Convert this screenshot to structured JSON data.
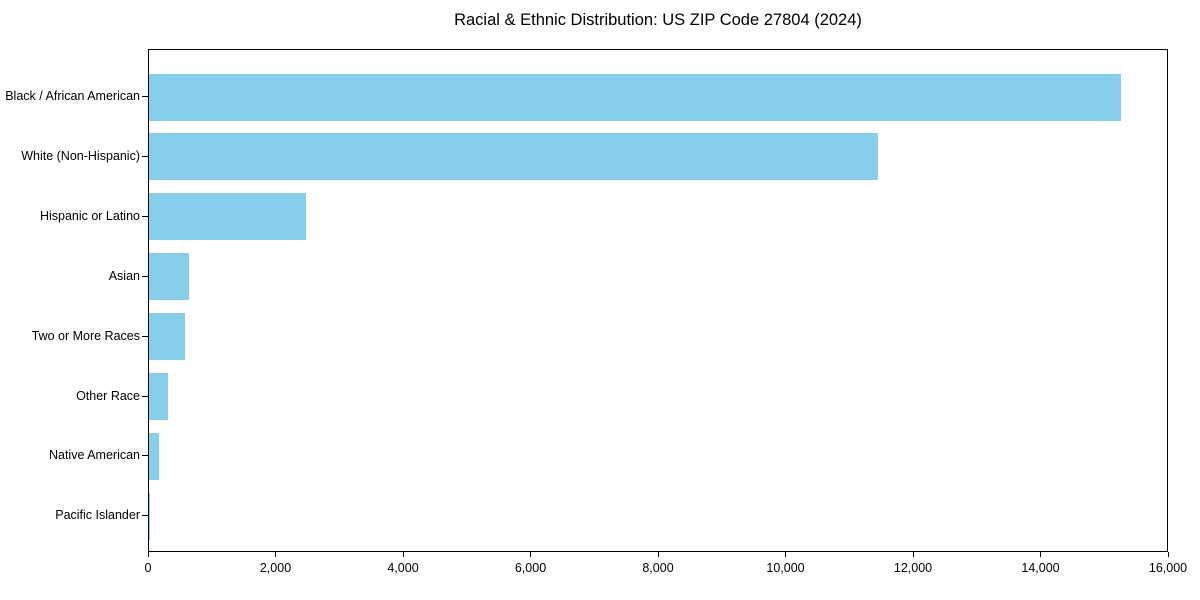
{
  "chart_data": {
    "type": "bar",
    "orientation": "horizontal",
    "title": "Racial & Ethnic Distribution: US ZIP Code 27804 (2024)",
    "categories": [
      "Black / African American",
      "White (Non-Hispanic)",
      "Hispanic or Latino",
      "Asian",
      "Two or More Races",
      "Other Race",
      "Native American",
      "Pacific Islander"
    ],
    "values": [
      15240,
      11430,
      2460,
      620,
      560,
      300,
      150,
      10
    ],
    "xlabel": "",
    "ylabel": "",
    "xlim": [
      0,
      16000
    ],
    "xticks": [
      0,
      2000,
      4000,
      6000,
      8000,
      10000,
      12000,
      14000,
      16000
    ],
    "xtick_labels": [
      "0",
      "2,000",
      "4,000",
      "6,000",
      "8,000",
      "10,000",
      "12,000",
      "14,000",
      "16,000"
    ],
    "bar_color": "#87CEEB",
    "axis_color": "#000000",
    "grid": false,
    "legend": null
  }
}
